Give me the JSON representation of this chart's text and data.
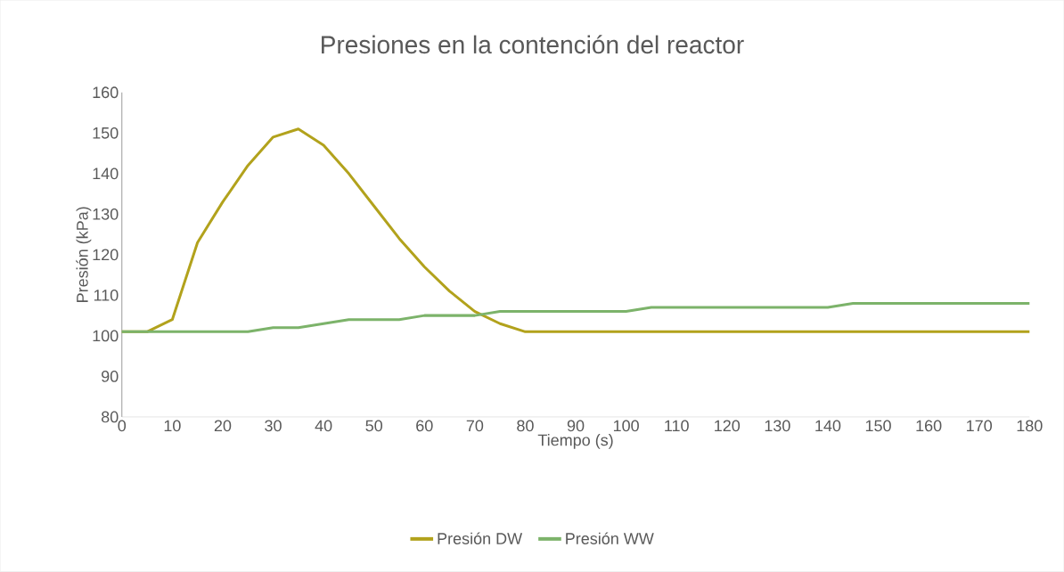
{
  "chart_data": {
    "type": "line",
    "title": "Presiones en la contención del reactor",
    "xlabel": "Tiempo (s)",
    "ylabel": "Presión (kPa)",
    "x": [
      0,
      5,
      10,
      15,
      20,
      25,
      30,
      35,
      40,
      45,
      50,
      55,
      60,
      65,
      70,
      75,
      80,
      85,
      90,
      95,
      100,
      105,
      110,
      115,
      120,
      125,
      130,
      135,
      140,
      145,
      150,
      155,
      160,
      165,
      170,
      175,
      180
    ],
    "series": [
      {
        "name": "Presión DW",
        "color": "#b2a21c",
        "values": [
          101,
          101,
          104,
          123,
          133,
          142,
          149,
          151,
          147,
          140,
          132,
          124,
          117,
          111,
          106,
          103,
          101,
          101,
          101,
          101,
          101,
          101,
          101,
          101,
          101,
          101,
          101,
          101,
          101,
          101,
          101,
          101,
          101,
          101,
          101,
          101,
          101
        ]
      },
      {
        "name": "Presión WW",
        "color": "#7cb36a",
        "values": [
          101,
          101,
          101,
          101,
          101,
          101,
          102,
          102,
          103,
          104,
          104,
          104,
          105,
          105,
          105,
          106,
          106,
          106,
          106,
          106,
          106,
          107,
          107,
          107,
          107,
          107,
          107,
          107,
          107,
          108,
          108,
          108,
          108,
          108,
          108,
          108,
          108
        ]
      }
    ],
    "xlim": [
      0,
      180
    ],
    "ylim": [
      80,
      160
    ],
    "xticks": [
      0,
      10,
      20,
      30,
      40,
      50,
      60,
      70,
      80,
      90,
      100,
      110,
      120,
      130,
      140,
      150,
      160,
      170,
      180
    ],
    "yticks": [
      80,
      90,
      100,
      110,
      120,
      130,
      140,
      150,
      160
    ],
    "legend": "bottom",
    "marker": "none",
    "line_style": "solid"
  }
}
